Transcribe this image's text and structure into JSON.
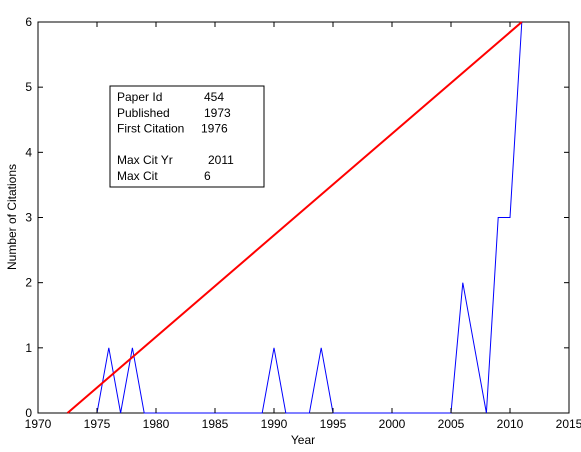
{
  "chart_data": {
    "type": "line",
    "title": "",
    "xlabel": "Year",
    "ylabel": "Number of Citations",
    "xlim": [
      1970,
      2015
    ],
    "ylim": [
      0,
      6
    ],
    "x_ticks": [
      1970,
      1975,
      1980,
      1985,
      1990,
      1995,
      2000,
      2005,
      2010,
      2015
    ],
    "y_ticks": [
      0,
      1,
      2,
      3,
      4,
      5,
      6
    ],
    "grid": false,
    "series": [
      {
        "color": "#0000ff",
        "x": [
          1975,
          1976,
          1977,
          1978,
          1979,
          1989,
          1990,
          1991,
          1993,
          1994,
          1995,
          2005,
          2006,
          2008,
          2009,
          2010,
          2011
        ],
        "y": [
          0,
          1,
          0,
          1,
          0,
          0,
          1,
          0,
          0,
          1,
          0,
          0,
          2,
          0,
          3,
          3,
          6
        ]
      },
      {
        "color": "#ff0000",
        "x": [
          1972.5,
          2011
        ],
        "y": [
          0,
          6
        ]
      }
    ],
    "annotation": {
      "lines": [
        {
          "label": "Paper Id",
          "value": "454"
        },
        {
          "label": "Published",
          "value": "1973"
        },
        {
          "label": "First Citation",
          "value": "1976"
        },
        {
          "label": "",
          "value": ""
        },
        {
          "label": "Max Cit Yr",
          "value": "2011"
        },
        {
          "label": "Max Cit",
          "value": "6"
        }
      ]
    }
  }
}
